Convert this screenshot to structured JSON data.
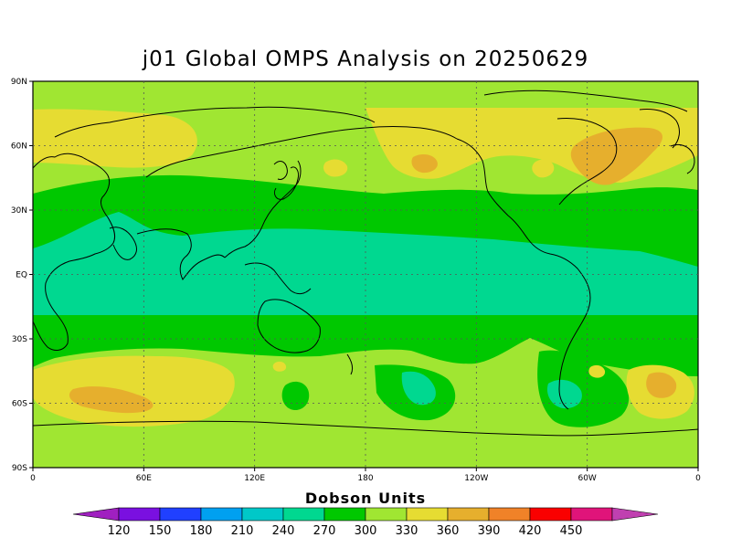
{
  "title": "j01 Global OMPS Analysis on 20250629",
  "units_label": "Dobson Units",
  "lat_ticks": [
    "90N",
    "60N",
    "30N",
    "EQ",
    "30S",
    "60S",
    "90S"
  ],
  "lon_ticks": [
    "0",
    "60E",
    "120E",
    "180",
    "120W",
    "60W",
    "0"
  ],
  "colorbar": {
    "labels": [
      "120",
      "150",
      "180",
      "210",
      "240",
      "270",
      "300",
      "330",
      "360",
      "390",
      "420",
      "450"
    ],
    "colors": [
      "#a020c0",
      "#7a10e0",
      "#2040ff",
      "#00a0f0",
      "#00c8c8",
      "#00d890",
      "#00c800",
      "#a0e632",
      "#e6dc32",
      "#e6af2d",
      "#f08228",
      "#fa0000",
      "#e0147a",
      "#c040b0"
    ]
  },
  "field_colors": {
    "c300": "#00c800",
    "c270": "#00d890",
    "c330": "#a0e632",
    "c360": "#e6dc32",
    "c390": "#e6af2d"
  }
}
